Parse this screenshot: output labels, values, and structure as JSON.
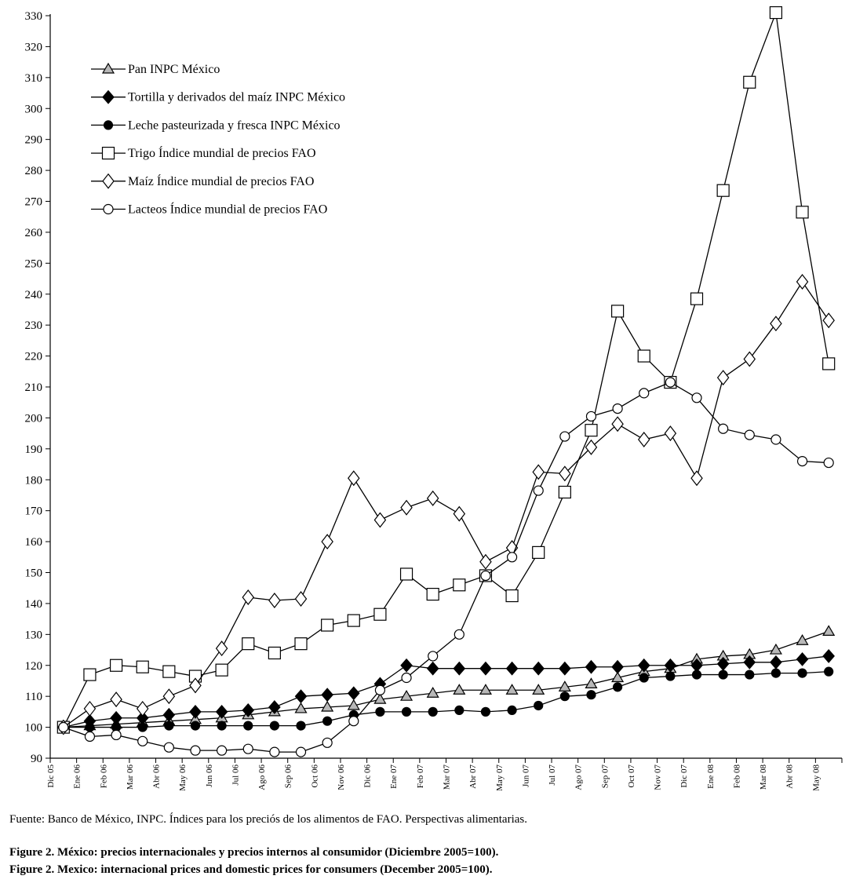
{
  "chart_data": {
    "type": "line",
    "title": "",
    "xlabel": "",
    "ylabel": "",
    "ylim": [
      90,
      330
    ],
    "yticks": [
      90,
      100,
      110,
      120,
      130,
      140,
      150,
      160,
      170,
      180,
      190,
      200,
      210,
      220,
      230,
      240,
      250,
      260,
      270,
      280,
      290,
      300,
      310,
      320,
      330
    ],
    "x_tick_labels": [
      "Dic 05",
      "Ene 06",
      "Feb 06",
      "Mar 06",
      "Abr 06",
      "May 06",
      "Jun 06",
      "Jul 06",
      "Ago 06",
      "Sep 06",
      "Oct 06",
      "Nov 06",
      "Dic 06",
      "Ene 07",
      "Feb 07",
      "Mar 07",
      "Abr 07",
      "May 07",
      "Jun 07",
      "Jul 07",
      "Ago 07",
      "Sep 07",
      "Oct 07",
      "Nov 07",
      "Dic 07",
      "Ene 08",
      "Feb 08",
      "Mar 08",
      "Abr 08",
      "May 08"
    ],
    "grid": false,
    "legend_position": "top-left",
    "series": [
      {
        "name": "Pan INPC México",
        "marker": "triangle",
        "values": [
          100,
          100.5,
          101,
          101.5,
          102,
          102.5,
          103,
          104,
          105,
          106,
          106.5,
          107,
          109,
          110,
          111,
          112,
          112,
          112,
          112,
          113,
          114,
          116,
          118,
          119,
          122,
          123,
          123.5,
          125,
          128,
          131
        ]
      },
      {
        "name": "Tortilla y derivados del maíz INPC México",
        "marker": "diamond-filled",
        "values": [
          100,
          102,
          103,
          103,
          104,
          105,
          105,
          105.5,
          106.5,
          110,
          110.5,
          111,
          114,
          120,
          119,
          119,
          119,
          119,
          119,
          119,
          119.5,
          119.5,
          120,
          120,
          120,
          120.5,
          121,
          121,
          122,
          123
        ]
      },
      {
        "name": "Leche pasteurizada y fresca INPC México",
        "marker": "circle-filled",
        "values": [
          100,
          100,
          100,
          100,
          100.5,
          100.5,
          100.5,
          100.5,
          100.5,
          100.5,
          102,
          104,
          105,
          105,
          105,
          105.5,
          105,
          105.5,
          107,
          110,
          110.5,
          113,
          116,
          116.5,
          117,
          117,
          117,
          117.5,
          117.5,
          118
        ]
      },
      {
        "name": "Trigo Índice mundial de precios FAO",
        "marker": "square",
        "values": [
          100,
          117,
          120,
          119.5,
          118,
          116.5,
          118.5,
          127,
          124,
          127,
          133,
          134.5,
          136.5,
          149.5,
          143,
          146,
          149,
          142.5,
          156.5,
          176,
          196,
          234.5,
          220,
          211.5,
          238.5,
          273.5,
          308.5,
          331,
          266.5,
          217.5
        ]
      },
      {
        "name": "Maíz Índice mundial de precios FAO",
        "marker": "diamond",
        "values": [
          100,
          106,
          109,
          106,
          110,
          113.5,
          125.5,
          142,
          141,
          141.5,
          160,
          180.5,
          167,
          171,
          174,
          169,
          153.5,
          158,
          182.5,
          182,
          190.5,
          198,
          193,
          195,
          180.5,
          213,
          219,
          230.5,
          244,
          231.5
        ]
      },
      {
        "name": "Lacteos Índice mundial de precios FAO",
        "marker": "circle",
        "values": [
          100,
          97,
          97.5,
          95.5,
          93.5,
          92.5,
          92.5,
          93,
          92,
          92,
          95,
          102,
          112,
          116,
          123,
          130,
          149,
          155,
          176.5,
          194,
          200.5,
          203,
          208,
          211.5,
          206.5,
          196.5,
          194.5,
          193,
          186,
          185.5
        ]
      }
    ]
  },
  "footer": {
    "source": "Fuente: Banco de México, INPC. Índices para los preciós de los alimentos de FAO. Perspectivas alimentarias.",
    "caption_es": "Figure 2. México: precios internacionales y precios internos al consumidor (Diciembre 2005=100).",
    "caption_en": "Figure 2. Mexico: internacional prices and domestic prices for consumers (December 2005=100)."
  }
}
